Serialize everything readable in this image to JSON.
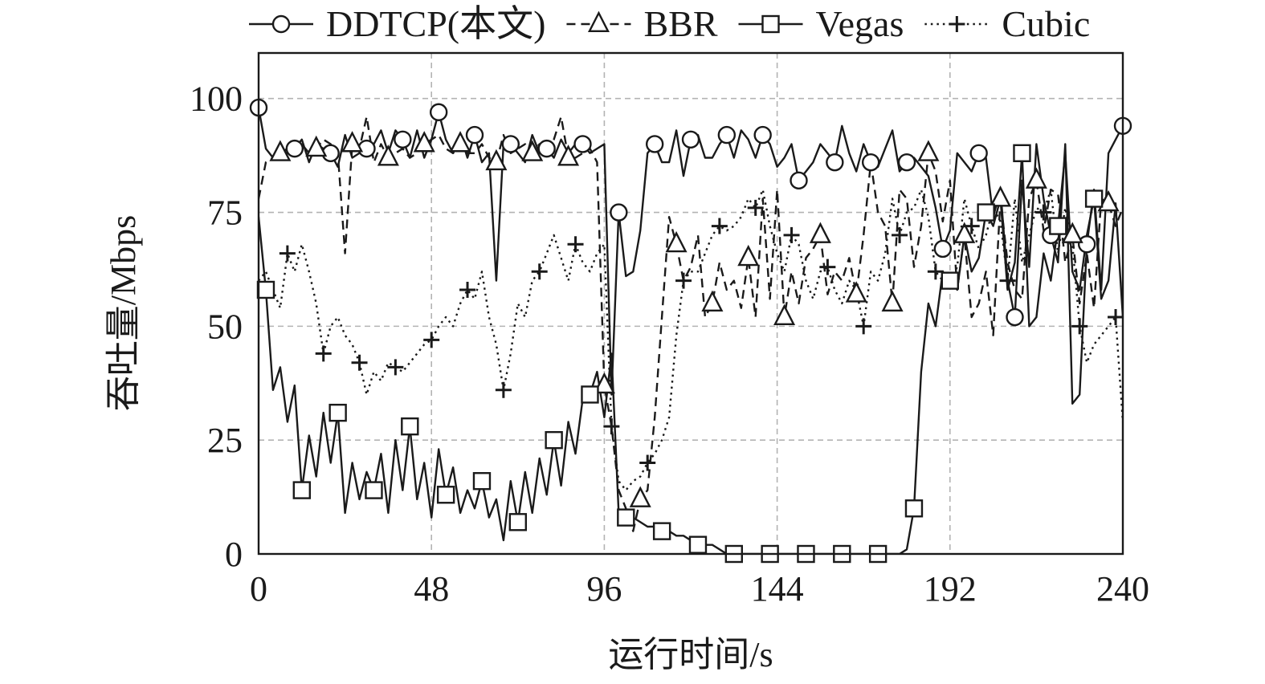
{
  "chart_data": {
    "type": "line",
    "xlabel": "运行时间/s",
    "ylabel": "吞吐量/Mbps",
    "xlim": [
      0,
      240
    ],
    "ylim": [
      0,
      110
    ],
    "xticks": [
      0,
      48,
      96,
      144,
      192,
      240
    ],
    "yticks": [
      0,
      25,
      50,
      75,
      100
    ],
    "grid": true,
    "legend_position": "top",
    "series": [
      {
        "name": "DDTCP(本文)",
        "style": "solid",
        "marker": "circle",
        "x": [
          0,
          2,
          4,
          6,
          8,
          10,
          12,
          14,
          16,
          18,
          20,
          22,
          24,
          26,
          28,
          30,
          32,
          34,
          36,
          38,
          40,
          42,
          44,
          46,
          48,
          50,
          52,
          54,
          56,
          58,
          60,
          62,
          64,
          66,
          68,
          70,
          72,
          74,
          76,
          78,
          80,
          82,
          84,
          86,
          88,
          90,
          92,
          94,
          96,
          98,
          100,
          102,
          104,
          106,
          108,
          110,
          112,
          114,
          116,
          118,
          120,
          122,
          124,
          126,
          128,
          130,
          132,
          134,
          136,
          138,
          140,
          142,
          144,
          146,
          148,
          150,
          152,
          154,
          156,
          158,
          160,
          162,
          164,
          166,
          168,
          170,
          172,
          174,
          176,
          178,
          180,
          182,
          184,
          186,
          188,
          190,
          192,
          194,
          196,
          198,
          200,
          202,
          204,
          206,
          208,
          210,
          212,
          214,
          216,
          218,
          220,
          222,
          224,
          226,
          228,
          230,
          232,
          234,
          236,
          238,
          240
        ],
        "y": [
          98,
          89,
          87,
          88,
          88,
          89,
          91,
          86,
          90,
          89,
          88,
          85,
          92,
          87,
          88,
          89,
          90,
          93,
          88,
          93,
          91,
          87,
          93,
          87,
          91,
          97,
          91,
          88,
          92,
          87,
          92,
          86,
          88,
          60,
          90,
          90,
          88,
          86,
          92,
          88,
          89,
          87,
          91,
          88,
          90,
          90,
          88,
          89,
          90,
          35,
          75,
          61,
          62,
          71,
          88,
          90,
          86,
          86,
          93,
          83,
          91,
          92,
          87,
          87,
          90,
          92,
          87,
          93,
          91,
          87,
          92,
          90,
          85,
          87,
          90,
          82,
          84,
          86,
          90,
          88,
          86,
          94,
          88,
          84,
          90,
          86,
          85,
          89,
          93,
          84,
          86,
          87,
          85,
          83,
          76,
          67,
          71,
          88,
          86,
          84,
          88,
          87,
          74,
          80,
          60,
          52,
          82,
          63,
          90,
          78,
          70,
          64,
          90,
          33,
          35,
          68,
          80,
          58,
          88,
          91,
          94
        ]
      },
      {
        "name": "BBR",
        "style": "dashed",
        "marker": "triangle",
        "x": [
          0,
          2,
          4,
          6,
          8,
          10,
          12,
          14,
          16,
          18,
          20,
          22,
          24,
          26,
          28,
          30,
          32,
          34,
          36,
          38,
          40,
          42,
          44,
          46,
          48,
          50,
          52,
          54,
          56,
          58,
          60,
          62,
          64,
          66,
          68,
          70,
          72,
          74,
          76,
          78,
          80,
          82,
          84,
          86,
          88,
          90,
          92,
          94,
          96,
          98,
          100,
          102,
          104,
          106,
          108,
          110,
          112,
          114,
          116,
          118,
          120,
          122,
          124,
          126,
          128,
          130,
          132,
          134,
          136,
          138,
          140,
          142,
          144,
          146,
          148,
          150,
          152,
          154,
          156,
          158,
          160,
          162,
          164,
          166,
          168,
          170,
          172,
          174,
          176,
          178,
          180,
          182,
          184,
          186,
          188,
          190,
          192,
          194,
          196,
          198,
          200,
          202,
          204,
          206,
          208,
          210,
          212,
          214,
          216,
          218,
          220,
          222,
          224,
          226,
          228,
          230,
          232,
          234,
          236,
          238,
          240
        ],
        "y": [
          78,
          86,
          87,
          88,
          89,
          88,
          90,
          88,
          89,
          91,
          90,
          88,
          66,
          90,
          89,
          96,
          86,
          90,
          87,
          88,
          89,
          87,
          88,
          90,
          91,
          92,
          89,
          88,
          90,
          88,
          88,
          90,
          87,
          86,
          92,
          88,
          89,
          90,
          88,
          90,
          88,
          91,
          96,
          87,
          87,
          88,
          89,
          86,
          37,
          28,
          14,
          10,
          5,
          12,
          14,
          30,
          52,
          74,
          68,
          60,
          63,
          70,
          52,
          55,
          64,
          58,
          60,
          54,
          65,
          52,
          78,
          56,
          80,
          52,
          62,
          55,
          65,
          67,
          70,
          57,
          62,
          60,
          65,
          57,
          70,
          86,
          75,
          72,
          55,
          80,
          78,
          63,
          72,
          88,
          84,
          73,
          82,
          58,
          70,
          52,
          55,
          62,
          48,
          78,
          64,
          58,
          56,
          78,
          82,
          71,
          80,
          79,
          64,
          70,
          55,
          66,
          54,
          78,
          77,
          72,
          76
        ]
      },
      {
        "name": "Vegas",
        "style": "solid",
        "marker": "square",
        "x": [
          0,
          2,
          4,
          6,
          8,
          10,
          12,
          14,
          16,
          18,
          20,
          22,
          24,
          26,
          28,
          30,
          32,
          34,
          36,
          38,
          40,
          42,
          44,
          46,
          48,
          50,
          52,
          54,
          56,
          58,
          60,
          62,
          64,
          66,
          68,
          70,
          72,
          74,
          76,
          78,
          80,
          82,
          84,
          86,
          88,
          90,
          92,
          94,
          96,
          98,
          100,
          102,
          104,
          106,
          108,
          110,
          112,
          114,
          116,
          118,
          120,
          122,
          124,
          126,
          128,
          130,
          132,
          134,
          136,
          138,
          140,
          142,
          144,
          146,
          148,
          150,
          152,
          154,
          156,
          158,
          160,
          162,
          164,
          166,
          168,
          170,
          172,
          174,
          176,
          178,
          180,
          182,
          184,
          186,
          188,
          190,
          192,
          194,
          196,
          198,
          200,
          202,
          204,
          206,
          208,
          210,
          212,
          214,
          216,
          218,
          220,
          222,
          224,
          226,
          228,
          230,
          232,
          234,
          236,
          238,
          240
        ],
        "y": [
          74,
          58,
          36,
          41,
          29,
          37,
          14,
          26,
          17,
          31,
          20,
          31,
          9,
          20,
          12,
          18,
          14,
          22,
          9,
          25,
          14,
          28,
          12,
          20,
          8,
          23,
          13,
          19,
          9,
          14,
          10,
          16,
          8,
          12,
          3,
          16,
          7,
          18,
          9,
          21,
          13,
          25,
          15,
          29,
          22,
          34,
          35,
          40,
          30,
          44,
          9,
          8,
          8,
          7,
          6,
          6,
          5,
          5,
          4,
          4,
          3,
          2,
          2,
          2,
          1,
          0,
          0,
          0,
          0,
          0,
          0,
          0,
          0,
          0,
          0,
          0,
          0,
          0,
          0,
          0,
          0,
          0,
          0,
          0,
          0,
          0,
          0,
          0,
          0,
          0,
          1,
          10,
          40,
          55,
          50,
          62,
          60,
          58,
          70,
          62,
          65,
          75,
          72,
          78,
          58,
          64,
          88,
          50,
          52,
          66,
          60,
          72,
          88,
          62,
          58,
          70,
          78,
          56,
          60,
          77,
          52
        ]
      },
      {
        "name": "Cubic",
        "style": "dotted",
        "marker": "plus",
        "x": [
          0,
          2,
          4,
          6,
          8,
          10,
          12,
          14,
          16,
          18,
          20,
          22,
          24,
          26,
          28,
          30,
          32,
          34,
          36,
          38,
          40,
          42,
          44,
          46,
          48,
          50,
          52,
          54,
          56,
          58,
          60,
          62,
          64,
          66,
          68,
          70,
          72,
          74,
          76,
          78,
          80,
          82,
          84,
          86,
          88,
          90,
          92,
          94,
          96,
          98,
          100,
          102,
          104,
          106,
          108,
          110,
          112,
          114,
          116,
          118,
          120,
          122,
          124,
          126,
          128,
          130,
          132,
          134,
          136,
          138,
          140,
          142,
          144,
          146,
          148,
          150,
          152,
          154,
          156,
          158,
          160,
          162,
          164,
          166,
          168,
          170,
          172,
          174,
          176,
          178,
          180,
          182,
          184,
          186,
          188,
          190,
          192,
          194,
          196,
          198,
          200,
          202,
          204,
          206,
          208,
          210,
          212,
          214,
          216,
          218,
          220,
          222,
          224,
          226,
          228,
          230,
          232,
          234,
          236,
          238,
          240
        ],
        "y": [
          60,
          62,
          58,
          54,
          66,
          62,
          68,
          62,
          55,
          44,
          50,
          52,
          48,
          46,
          42,
          35,
          40,
          38,
          42,
          41,
          40,
          42,
          44,
          46,
          47,
          50,
          52,
          50,
          55,
          58,
          56,
          62,
          52,
          46,
          36,
          44,
          55,
          52,
          60,
          62,
          66,
          70,
          65,
          60,
          68,
          64,
          62,
          66,
          68,
          28,
          16,
          14,
          16,
          17,
          20,
          22,
          25,
          30,
          48,
          60,
          62,
          62,
          66,
          70,
          72,
          71,
          72,
          74,
          78,
          76,
          80,
          72,
          66,
          62,
          70,
          68,
          60,
          56,
          62,
          63,
          58,
          55,
          60,
          58,
          50,
          62,
          60,
          66,
          78,
          70,
          75,
          76,
          80,
          74,
          62,
          60,
          60,
          63,
          78,
          72,
          67,
          70,
          76,
          73,
          60,
          78,
          64,
          70,
          76,
          75,
          80,
          66,
          76,
          68,
          50,
          42,
          46,
          48,
          50,
          52,
          29
        ]
      }
    ]
  }
}
